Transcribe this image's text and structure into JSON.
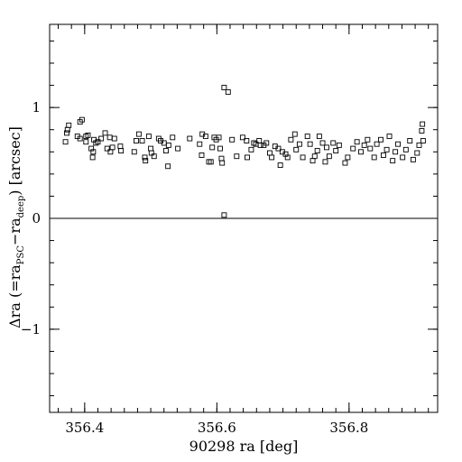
{
  "chart_data": {
    "type": "scatter",
    "title": "",
    "xlabel": "90298 ra [deg]",
    "ylabel": {
      "prefix": "Δra (=ra",
      "sub1": "PSC",
      "middle": "−ra",
      "sub2": "deep",
      "suffix": ") [arcsec]"
    },
    "xlim": [
      356.347,
      356.934
    ],
    "ylim": [
      -1.75,
      1.75
    ],
    "x_ticks": [
      356.4,
      356.6,
      356.8
    ],
    "x_tick_labels": [
      "356.4",
      "356.6",
      "356.8"
    ],
    "y_ticks": [
      -1,
      0,
      1
    ],
    "y_tick_labels": [
      "−1",
      "0",
      "1"
    ],
    "x_minor_step": 0.02,
    "y_minor_step": 0.2,
    "zero_line": 0,
    "marker": "open-square",
    "grid": false,
    "legend": "none",
    "points": [
      [
        356.371,
        0.69
      ],
      [
        356.373,
        0.77
      ],
      [
        356.374,
        0.8
      ],
      [
        356.376,
        0.84
      ],
      [
        356.393,
        0.87
      ],
      [
        356.389,
        0.74
      ],
      [
        356.393,
        0.72
      ],
      [
        356.396,
        0.89
      ],
      [
        356.402,
        0.74
      ],
      [
        356.402,
        0.69
      ],
      [
        356.405,
        0.75
      ],
      [
        356.41,
        0.63
      ],
      [
        356.412,
        0.55
      ],
      [
        356.414,
        0.71
      ],
      [
        356.413,
        0.6
      ],
      [
        356.417,
        0.68
      ],
      [
        356.42,
        0.69
      ],
      [
        356.425,
        0.72
      ],
      [
        356.431,
        0.77
      ],
      [
        356.434,
        0.63
      ],
      [
        356.438,
        0.73
      ],
      [
        356.439,
        0.6
      ],
      [
        356.442,
        0.64
      ],
      [
        356.445,
        0.72
      ],
      [
        356.454,
        0.65
      ],
      [
        356.455,
        0.61
      ],
      [
        356.475,
        0.6
      ],
      [
        356.478,
        0.7
      ],
      [
        356.482,
        0.76
      ],
      [
        356.487,
        0.7
      ],
      [
        356.491,
        0.55
      ],
      [
        356.492,
        0.52
      ],
      [
        356.497,
        0.74
      ],
      [
        356.5,
        0.63
      ],
      [
        356.501,
        0.59
      ],
      [
        356.505,
        0.56
      ],
      [
        356.512,
        0.72
      ],
      [
        356.515,
        0.7
      ],
      [
        356.52,
        0.68
      ],
      [
        356.523,
        0.61
      ],
      [
        356.526,
        0.47
      ],
      [
        356.527,
        0.66
      ],
      [
        356.533,
        0.73
      ],
      [
        356.541,
        0.63
      ],
      [
        356.559,
        0.72
      ],
      [
        356.574,
        0.67
      ],
      [
        356.577,
        0.57
      ],
      [
        356.578,
        0.76
      ],
      [
        356.583,
        0.74
      ],
      [
        356.588,
        0.51
      ],
      [
        356.591,
        0.51
      ],
      [
        356.593,
        0.64
      ],
      [
        356.596,
        0.73
      ],
      [
        356.599,
        0.71
      ],
      [
        356.603,
        0.73
      ],
      [
        356.605,
        0.63
      ],
      [
        356.607,
        0.54
      ],
      [
        356.608,
        0.5
      ],
      [
        356.611,
        1.18
      ],
      [
        356.617,
        1.14
      ],
      [
        356.611,
        0.03
      ],
      [
        356.623,
        0.71
      ],
      [
        356.63,
        0.56
      ],
      [
        356.639,
        0.73
      ],
      [
        356.645,
        0.7
      ],
      [
        356.646,
        0.55
      ],
      [
        356.652,
        0.62
      ],
      [
        356.656,
        0.68
      ],
      [
        356.659,
        0.67
      ],
      [
        356.664,
        0.7
      ],
      [
        356.666,
        0.66
      ],
      [
        356.671,
        0.66
      ],
      [
        356.675,
        0.68
      ],
      [
        356.68,
        0.59
      ],
      [
        356.683,
        0.55
      ],
      [
        356.688,
        0.65
      ],
      [
        356.693,
        0.63
      ],
      [
        356.696,
        0.48
      ],
      [
        356.699,
        0.6
      ],
      [
        356.704,
        0.58
      ],
      [
        356.707,
        0.55
      ],
      [
        356.712,
        0.71
      ],
      [
        356.718,
        0.76
      ],
      [
        356.72,
        0.62
      ],
      [
        356.725,
        0.67
      ],
      [
        356.73,
        0.55
      ],
      [
        356.737,
        0.74
      ],
      [
        356.741,
        0.67
      ],
      [
        356.745,
        0.52
      ],
      [
        356.748,
        0.56
      ],
      [
        356.752,
        0.61
      ],
      [
        356.755,
        0.74
      ],
      [
        356.76,
        0.68
      ],
      [
        356.764,
        0.51
      ],
      [
        356.766,
        0.64
      ],
      [
        356.77,
        0.56
      ],
      [
        356.776,
        0.68
      ],
      [
        356.78,
        0.61
      ],
      [
        356.785,
        0.66
      ],
      [
        356.794,
        0.5
      ],
      [
        356.798,
        0.55
      ],
      [
        356.806,
        0.63
      ],
      [
        356.812,
        0.69
      ],
      [
        356.818,
        0.6
      ],
      [
        356.823,
        0.66
      ],
      [
        356.828,
        0.71
      ],
      [
        356.832,
        0.63
      ],
      [
        356.838,
        0.55
      ],
      [
        356.842,
        0.67
      ],
      [
        356.848,
        0.71
      ],
      [
        356.852,
        0.57
      ],
      [
        356.857,
        0.62
      ],
      [
        356.861,
        0.74
      ],
      [
        356.866,
        0.52
      ],
      [
        356.87,
        0.6
      ],
      [
        356.874,
        0.67
      ],
      [
        356.881,
        0.55
      ],
      [
        356.886,
        0.62
      ],
      [
        356.892,
        0.7
      ],
      [
        356.897,
        0.53
      ],
      [
        356.903,
        0.59
      ],
      [
        356.906,
        0.66
      ],
      [
        356.91,
        0.79
      ],
      [
        356.911,
        0.85
      ],
      [
        356.912,
        0.7
      ]
    ]
  }
}
